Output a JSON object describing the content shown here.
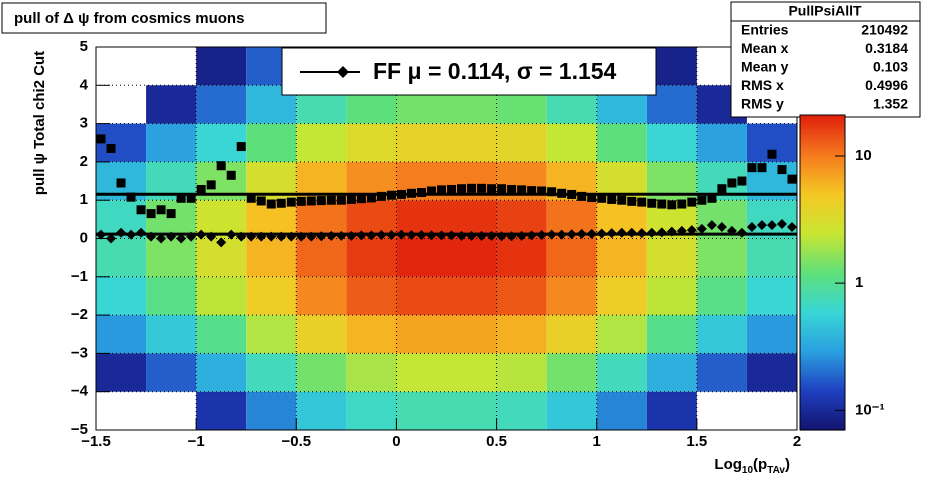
{
  "chart_data": {
    "type": "heatmap_profile",
    "title": "pull of Δ ψ from cosmics muons",
    "y_label": "pull  ψ    Total chi2 Cut",
    "x_label_parts": [
      "Log",
      "10",
      "(p",
      "TAv",
      ")"
    ],
    "xlim": [
      -1.5,
      2
    ],
    "ylim": [
      -5,
      5
    ],
    "xticks": [
      {
        "value": -1.5,
        "label": "−1.5"
      },
      {
        "value": -1,
        "label": "−1"
      },
      {
        "value": -0.5,
        "label": "−0.5"
      },
      0,
      0.5,
      1,
      1.5,
      2
    ],
    "yticks": [
      {
        "value": -5,
        "label": "−5"
      },
      {
        "value": -4,
        "label": "−4"
      },
      {
        "value": -3,
        "label": "−3"
      },
      {
        "value": -2,
        "label": "−2"
      },
      {
        "value": -1,
        "label": "−1"
      },
      0,
      1,
      2,
      3,
      4,
      5
    ],
    "grid": true,
    "zlim": [
      0.07,
      21
    ],
    "zscale": "log",
    "zticks": [
      {
        "value": 0.1,
        "label": "10⁻¹"
      },
      1,
      10
    ],
    "colorscale": [
      "#12126e",
      "#1f3fbf",
      "#2a9fe0",
      "#38d6d6",
      "#5ee07a",
      "#c8e632",
      "#f5c824",
      "#f57a1e",
      "#e0200c"
    ],
    "heatmap": {
      "xbins": [
        -1.5,
        -1.25,
        -1,
        -0.75,
        -0.5,
        -0.25,
        0,
        0.25,
        0.5,
        0.75,
        1,
        1.25,
        1.5,
        1.75,
        2
      ],
      "ybins": [
        -5,
        -4,
        -3,
        -2,
        -1,
        0,
        1,
        2,
        3,
        4,
        5
      ],
      "z": [
        [
          0.03,
          0.06,
          0.12,
          0.24,
          0.48,
          0.68,
          0.8,
          0.8,
          0.72,
          0.48,
          0.24,
          0.12,
          0.06,
          0.03
        ],
        [
          0.1,
          0.18,
          0.36,
          0.72,
          1.4,
          2,
          2.4,
          2.4,
          2.2,
          1.4,
          0.72,
          0.36,
          0.18,
          0.1
        ],
        [
          0.28,
          0.5,
          1.05,
          2.1,
          4.2,
          6,
          7,
          7,
          6.3,
          4.2,
          2.1,
          1.05,
          0.5,
          0.28
        ],
        [
          0.6,
          1.1,
          2.3,
          4.5,
          9,
          13,
          15,
          15,
          13.5,
          9,
          4.5,
          2.3,
          1.1,
          0.6
        ],
        [
          0.8,
          1.5,
          3,
          6,
          12,
          17,
          20,
          20,
          18,
          12,
          6,
          3,
          1.5,
          0.8
        ],
        [
          0.7,
          1.4,
          2.7,
          5.4,
          11,
          15,
          18,
          18,
          16,
          11,
          5.4,
          2.7,
          1.4,
          0.7
        ],
        [
          0.4,
          0.75,
          1.5,
          3,
          6,
          8.5,
          10,
          10,
          9,
          6,
          3,
          1.5,
          0.75,
          0.4
        ],
        [
          0.16,
          0.3,
          0.6,
          1.2,
          2.4,
          3.4,
          4,
          4,
          3.6,
          2.4,
          1.2,
          0.6,
          0.3,
          0.16
        ],
        [
          0.06,
          0.1,
          0.2,
          0.4,
          0.8,
          1.2,
          1.4,
          1.4,
          1.3,
          0.8,
          0.4,
          0.2,
          0.1,
          0.06
        ],
        [
          0.02,
          0.05,
          0.09,
          0.18,
          0.36,
          0.51,
          0.6,
          0.6,
          0.54,
          0.36,
          0.18,
          0.09,
          0.05,
          0.02
        ]
      ]
    },
    "x": [
      -1.475,
      -1.425,
      -1.375,
      -1.325,
      -1.275,
      -1.225,
      -1.175,
      -1.125,
      -1.075,
      -1.025,
      -0.975,
      -0.925,
      -0.875,
      -0.825,
      -0.775,
      -0.725,
      -0.675,
      -0.625,
      -0.575,
      -0.525,
      -0.475,
      -0.425,
      -0.375,
      -0.325,
      -0.275,
      -0.225,
      -0.175,
      -0.125,
      -0.075,
      -0.025,
      0.025,
      0.075,
      0.125,
      0.175,
      0.225,
      0.275,
      0.325,
      0.375,
      0.425,
      0.475,
      0.525,
      0.575,
      0.625,
      0.675,
      0.725,
      0.775,
      0.825,
      0.875,
      0.925,
      0.975,
      1.025,
      1.075,
      1.125,
      1.175,
      1.225,
      1.275,
      1.325,
      1.375,
      1.425,
      1.475,
      1.525,
      1.575,
      1.625,
      1.675,
      1.725,
      1.775,
      1.825,
      1.875,
      1.925,
      1.975
    ],
    "series": [
      {
        "marker": "square",
        "color": "#000000",
        "values": [
          2.6,
          2.35,
          1.45,
          1.08,
          0.75,
          0.65,
          0.75,
          0.65,
          1.05,
          1.05,
          1.28,
          1.4,
          1.9,
          1.65,
          2.4,
          1.05,
          0.98,
          0.9,
          0.92,
          0.95,
          0.97,
          0.98,
          0.99,
          1.0,
          1.0,
          1.02,
          1.04,
          1.06,
          1.1,
          1.13,
          1.15,
          1.18,
          1.2,
          1.24,
          1.27,
          1.28,
          1.3,
          1.31,
          1.31,
          1.3,
          1.3,
          1.28,
          1.27,
          1.25,
          1.24,
          1.22,
          1.18,
          1.15,
          1.1,
          1.07,
          1.05,
          1.02,
          1.0,
          0.97,
          0.95,
          0.92,
          0.9,
          0.88,
          0.9,
          0.95,
          1.0,
          1.05,
          1.3,
          1.45,
          1.5,
          1.85,
          1.85,
          2.2,
          1.8,
          1.55
        ]
      },
      {
        "marker": "diamond",
        "color": "#000000",
        "values": [
          0.1,
          0.0,
          0.15,
          0.1,
          0.15,
          0.05,
          0.0,
          0.05,
          0.0,
          0.05,
          0.1,
          0.05,
          -0.1,
          0.1,
          0.05,
          0.05,
          0.05,
          0.05,
          0.05,
          0.05,
          0.05,
          0.05,
          0.06,
          0.07,
          0.07,
          0.07,
          0.08,
          0.08,
          0.09,
          0.09,
          0.1,
          0.09,
          0.09,
          0.08,
          0.08,
          0.08,
          0.07,
          0.07,
          0.07,
          0.07,
          0.06,
          0.06,
          0.07,
          0.08,
          0.09,
          0.1,
          0.1,
          0.11,
          0.12,
          0.12,
          0.13,
          0.14,
          0.15,
          0.15,
          0.14,
          0.15,
          0.16,
          0.18,
          0.2,
          0.22,
          0.25,
          0.35,
          0.3,
          0.2,
          0.15,
          0.3,
          0.35,
          0.35,
          0.38,
          0.3
        ]
      }
    ],
    "fit_lines": [
      1.154,
      0.114
    ],
    "legend": "FF μ =  0.114, σ =   1.154",
    "stats": {
      "name": "PullPsiAllT",
      "rows": [
        [
          "Entries",
          210492
        ],
        [
          "Mean x",
          0.3184
        ],
        [
          "Mean y",
          0.103
        ],
        [
          "RMS x",
          0.4996
        ],
        [
          "RMS y",
          1.352
        ]
      ]
    }
  }
}
